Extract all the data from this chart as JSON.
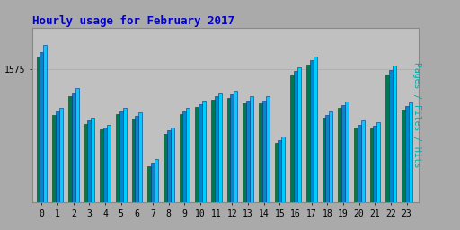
{
  "title": "Hourly usage for February 2017",
  "title_color": "#0000cc",
  "title_fontsize": 9,
  "background_color": "#aaaaaa",
  "plot_bg_color": "#c0c0c0",
  "ylabel": "Pages / Files / Hits",
  "ylabel_color": "#00aaaa",
  "ylabel_fontsize": 7,
  "hours": [
    0,
    1,
    2,
    3,
    4,
    5,
    6,
    7,
    8,
    9,
    10,
    11,
    12,
    13,
    14,
    15,
    16,
    17,
    18,
    19,
    20,
    21,
    22,
    23
  ],
  "ytick_label": "1575",
  "ytick_color": "#000000",
  "xtick_color": "#000000",
  "ylim_min": 1300,
  "ylim_max": 1660,
  "hits": [
    1625,
    1495,
    1535,
    1475,
    1460,
    1495,
    1485,
    1390,
    1455,
    1495,
    1510,
    1525,
    1530,
    1518,
    1518,
    1435,
    1578,
    1600,
    1488,
    1508,
    1468,
    1465,
    1582,
    1505
  ],
  "files": [
    1610,
    1488,
    1525,
    1468,
    1455,
    1488,
    1478,
    1382,
    1448,
    1488,
    1502,
    1518,
    1522,
    1510,
    1510,
    1428,
    1570,
    1592,
    1480,
    1500,
    1460,
    1458,
    1572,
    1498
  ],
  "pages": [
    1600,
    1480,
    1518,
    1462,
    1450,
    1482,
    1472,
    1375,
    1442,
    1482,
    1496,
    1512,
    1516,
    1504,
    1504,
    1422,
    1562,
    1584,
    1474,
    1494,
    1454,
    1452,
    1564,
    1492
  ],
  "bar_width": 0.22,
  "hits_color": "#00ccff",
  "files_color": "#0088cc",
  "pages_color": "#007755",
  "hits_edge": "#003388",
  "files_edge": "#003388",
  "pages_edge": "#004400",
  "grid_color": "#aaaaaa",
  "border_color": "#888888"
}
